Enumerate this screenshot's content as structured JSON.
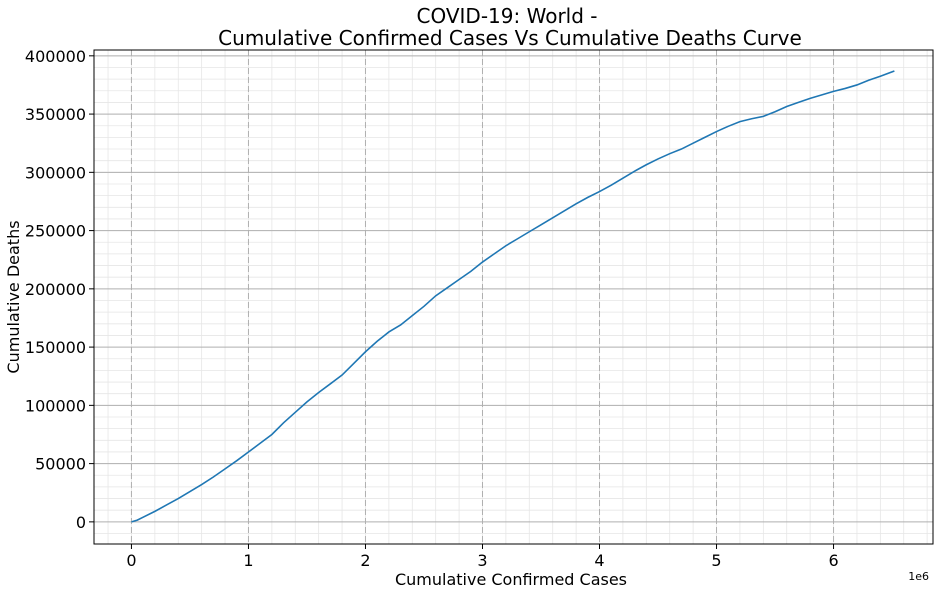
{
  "chart_data": {
    "type": "line",
    "title_line1": "COVID-19: World -",
    "title_line2": "Cumulative Confirmed Cases Vs Cumulative Deaths Curve",
    "xlabel": "Cumulative Confirmed Cases",
    "ylabel": "Cumulative Deaths",
    "x_offset_text": "1e6",
    "xlim": [
      -320000,
      6850000
    ],
    "ylim": [
      -19000,
      405000
    ],
    "x_ticks": [
      0,
      1000000,
      2000000,
      3000000,
      4000000,
      5000000,
      6000000
    ],
    "x_tick_labels": [
      "0",
      "1",
      "2",
      "3",
      "4",
      "5",
      "6"
    ],
    "y_ticks": [
      0,
      50000,
      100000,
      150000,
      200000,
      250000,
      300000,
      350000,
      400000
    ],
    "y_tick_labels": [
      "0",
      "50000",
      "100000",
      "150000",
      "200000",
      "250000",
      "300000",
      "350000",
      "400000"
    ],
    "grid": "major and minor",
    "line_color": "#1f77b4",
    "series": [
      {
        "x": [
          0,
          50000,
          100000,
          200000,
          300000,
          400000,
          500000,
          600000,
          700000,
          800000,
          900000,
          1000000,
          1100000,
          1200000,
          1300000,
          1400000,
          1500000,
          1600000,
          1700000,
          1800000,
          1900000,
          2000000,
          2100000,
          2200000,
          2300000,
          2400000,
          2500000,
          2600000,
          2700000,
          2800000,
          2900000,
          3000000,
          3100000,
          3200000,
          3300000,
          3400000,
          3500000,
          3600000,
          3700000,
          3800000,
          3900000,
          4000000,
          4100000,
          4200000,
          4300000,
          4400000,
          4500000,
          4600000,
          4700000,
          4800000,
          4900000,
          5000000,
          5100000,
          5200000,
          5300000,
          5400000,
          5500000,
          5600000,
          5700000,
          5800000,
          5900000,
          6000000,
          6100000,
          6200000,
          6300000,
          6400000,
          6520000
        ],
        "y": [
          0,
          1500,
          4000,
          9000,
          14500,
          20000,
          26000,
          32000,
          38500,
          45500,
          52500,
          60000,
          67500,
          75000,
          85000,
          94000,
          103000,
          111000,
          118500,
          126000,
          136000,
          146000,
          155000,
          163000,
          169000,
          177000,
          185000,
          194000,
          201000,
          208000,
          215000,
          223000,
          230000,
          237000,
          243000,
          249000,
          255000,
          261000,
          267000,
          273000,
          278500,
          283500,
          289000,
          295000,
          301000,
          306500,
          311500,
          316000,
          320000,
          325000,
          330000,
          335000,
          339500,
          343500,
          346000,
          348000,
          352000,
          356500,
          360000,
          363500,
          366500,
          369500,
          372000,
          375000,
          379000,
          382500,
          387000
        ]
      }
    ]
  }
}
